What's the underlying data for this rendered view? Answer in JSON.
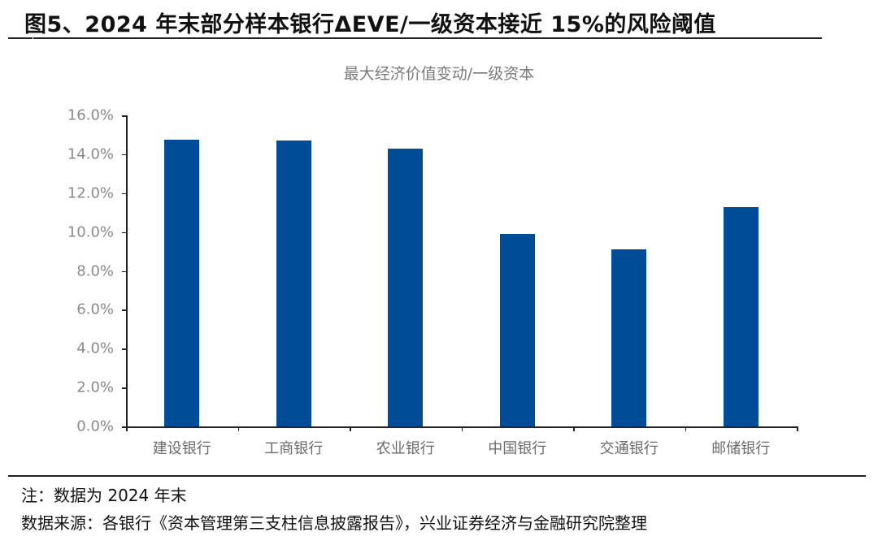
{
  "figure": {
    "title": "图5、2024 年末部分样本银行ΔEVE/一级资本接近 15%的风险阈值",
    "note": "注：数据为 2024 年末",
    "source": "数据来源：各银行《资本管理第三支柱信息披露报告》，兴业证券经济与金融研究院整理"
  },
  "chart_data": {
    "type": "bar",
    "title": "最大经济价值变动/一级资本",
    "xlabel": "",
    "ylabel": "",
    "categories": [
      "建设银行",
      "工商银行",
      "农业银行",
      "中国银行",
      "交通银行",
      "邮储银行"
    ],
    "values": [
      14.75,
      14.7,
      14.3,
      9.9,
      9.1,
      11.3
    ],
    "value_unit": "%",
    "ylim": [
      0,
      16
    ],
    "yticks": [
      "0.0%",
      "2.0%",
      "4.0%",
      "6.0%",
      "8.0%",
      "10.0%",
      "12.0%",
      "14.0%",
      "16.0%"
    ],
    "grid": false,
    "legend": null,
    "bar_color": "#004c97"
  }
}
